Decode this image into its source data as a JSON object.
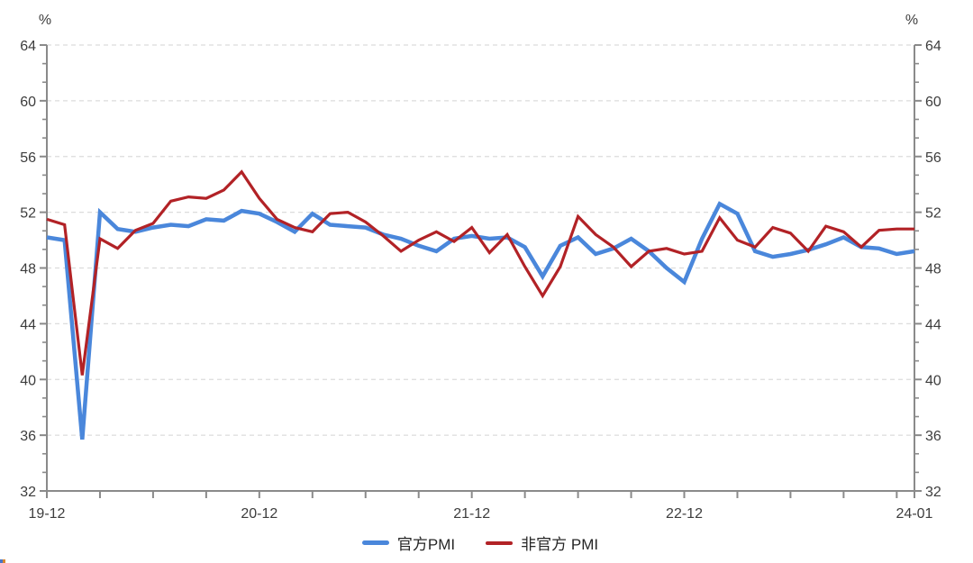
{
  "chart_data": {
    "type": "line",
    "title": "",
    "y_axis": {
      "unit_label": "%",
      "min": 32,
      "max": 64,
      "major_step": 4,
      "minor_per_major": 3,
      "tick_labels": [
        "32",
        "36",
        "40",
        "44",
        "48",
        "52",
        "56",
        "60",
        "64"
      ]
    },
    "x": [
      "19-12",
      "20-01",
      "20-02",
      "20-03",
      "20-04",
      "20-05",
      "20-06",
      "20-07",
      "20-08",
      "20-09",
      "20-10",
      "20-11",
      "20-12",
      "21-01",
      "21-02",
      "21-03",
      "21-04",
      "21-05",
      "21-06",
      "21-07",
      "21-08",
      "21-09",
      "21-10",
      "21-11",
      "21-12",
      "22-01",
      "22-02",
      "22-03",
      "22-04",
      "22-05",
      "22-06",
      "22-07",
      "22-08",
      "22-09",
      "22-10",
      "22-11",
      "22-12",
      "23-01",
      "23-02",
      "23-03",
      "23-04",
      "23-05",
      "23-06",
      "23-07",
      "23-08",
      "23-09",
      "23-10",
      "23-11",
      "23-12",
      "24-01"
    ],
    "x_tick_every_months": 3,
    "x_axis_labels": [
      {
        "index": 0,
        "label": "19-12"
      },
      {
        "index": 12,
        "label": "20-12"
      },
      {
        "index": 24,
        "label": "21-12"
      },
      {
        "index": 36,
        "label": "22-12"
      },
      {
        "index": 49,
        "label": "24-01"
      }
    ],
    "series": [
      {
        "id": "official-pmi",
        "name": "官方PMI",
        "color": "#4a87db",
        "width": 4.5,
        "values": [
          50.2,
          50.0,
          35.7,
          52.0,
          50.8,
          50.6,
          50.9,
          51.1,
          51.0,
          51.5,
          51.4,
          52.1,
          51.9,
          51.3,
          50.6,
          51.9,
          51.1,
          51.0,
          50.9,
          50.4,
          50.1,
          49.6,
          49.2,
          50.1,
          50.3,
          50.1,
          50.2,
          49.5,
          47.4,
          49.6,
          50.2,
          49.0,
          49.4,
          50.1,
          49.2,
          48.0,
          47.0,
          50.1,
          52.6,
          51.9,
          49.2,
          48.8,
          49.0,
          49.3,
          49.7,
          50.2,
          49.5,
          49.4,
          49.0,
          49.2
        ]
      },
      {
        "id": "unofficial-pmi",
        "name": "非官方 PMI",
        "color": "#b22226",
        "width": 3.2,
        "values": [
          51.5,
          51.1,
          40.3,
          50.1,
          49.4,
          50.7,
          51.2,
          52.8,
          53.1,
          53.0,
          53.6,
          54.9,
          53.0,
          51.5,
          50.9,
          50.6,
          51.9,
          52.0,
          51.3,
          50.3,
          49.2,
          50.0,
          50.6,
          49.9,
          50.9,
          49.1,
          50.4,
          48.1,
          46.0,
          48.1,
          51.7,
          50.4,
          49.5,
          48.1,
          49.2,
          49.4,
          49.0,
          49.2,
          51.6,
          50.0,
          49.5,
          50.9,
          50.5,
          49.2,
          51.0,
          50.6,
          49.5,
          50.7,
          50.8,
          50.8
        ]
      }
    ],
    "grid": {
      "show": true,
      "color": "#dcdcdc",
      "dash": "5 4"
    },
    "axis_color": "#8a8a8a",
    "label_color": "#3d3d3d",
    "legend_position": "bottom-center"
  },
  "legend": {
    "items": [
      {
        "label": "官方PMI",
        "color": "#4a87db"
      },
      {
        "label": "非官方 PMI",
        "color": "#b22226"
      }
    ]
  }
}
